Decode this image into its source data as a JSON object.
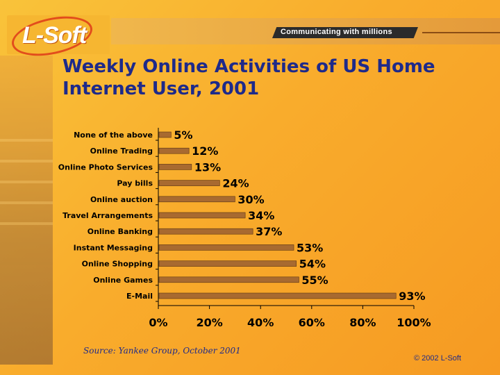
{
  "logo": {
    "text": "L-Soft"
  },
  "header": {
    "tagline": "Communicating with millions"
  },
  "footer": {
    "source": "Source: Yankee Group, October 2001",
    "copyright": "© 2002 L-Soft"
  },
  "colors": {
    "bar": "#a86a30",
    "title": "#1e2a8a"
  },
  "chart_data": {
    "type": "bar",
    "orientation": "horizontal",
    "title": "Weekly Online Activities of US Home Internet User, 2001",
    "categories": [
      "None of the above",
      "Online Trading",
      "Online Photo Services",
      "Pay bills",
      "Online auction",
      "Travel Arrangements",
      "Online Banking",
      "Instant Messaging",
      "Online Shopping",
      "Online Games",
      "E-Mail"
    ],
    "values": [
      5,
      12,
      13,
      24,
      30,
      34,
      37,
      53,
      54,
      55,
      93
    ],
    "value_labels": [
      "5%",
      "12%",
      "13%",
      "24%",
      "30%",
      "34%",
      "37%",
      "53%",
      "54%",
      "55%",
      "93%"
    ],
    "xlim": [
      0,
      100
    ],
    "xticks": [
      0,
      20,
      40,
      60,
      80,
      100
    ],
    "xtick_labels": [
      "0%",
      "20%",
      "40%",
      "60%",
      "80%",
      "100%"
    ],
    "grid": false,
    "legend": "none"
  }
}
